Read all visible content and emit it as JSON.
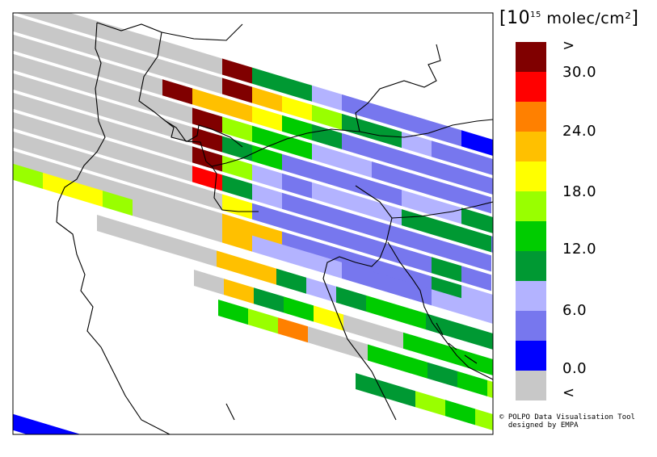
{
  "legend": {
    "title_prefix": "[10",
    "title_exp": "15",
    "title_unit": " molec/cm²",
    "title_suffix": "]",
    "labels": [
      {
        "text": ">",
        "value": "above"
      },
      {
        "text": "30.0",
        "value": 30
      },
      {
        "text": "24.0",
        "value": 24
      },
      {
        "text": "18.0",
        "value": 18
      },
      {
        "text": "12.0",
        "value": 12
      },
      {
        "text": "6.0",
        "value": 6
      },
      {
        "text": "0.0",
        "value": 0
      },
      {
        "text": "<",
        "value": "below"
      }
    ],
    "colors": [
      "#800000",
      "#ff0000",
      "#ff8000",
      "#ffc000",
      "#ffff00",
      "#99ff00",
      "#00cc00",
      "#009933",
      "#b3b3ff",
      "#7777ee",
      "#0000ff",
      "#c8c8c8"
    ]
  },
  "credit": {
    "line1": "© POLPO Data Visualisation Tool",
    "line2": "  designed by EMPA"
  }
}
